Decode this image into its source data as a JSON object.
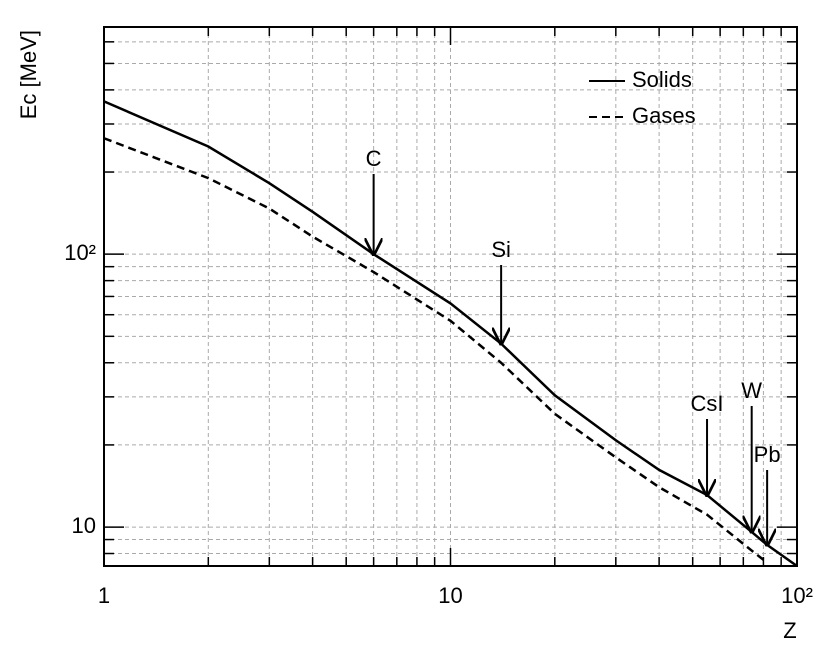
{
  "chart_data": {
    "type": "line",
    "x_label": "Z",
    "y_label": "Ec [MeV]",
    "log_x": true,
    "log_y": true,
    "grid": true,
    "legend_position": "upper right",
    "xlim": [
      1,
      100
    ],
    "ylim": [
      7.2,
      680
    ],
    "xticks": [
      1,
      10,
      {
        "value": 100,
        "label": "10²"
      }
    ],
    "xminor": [
      2,
      3,
      4,
      5,
      6,
      7,
      8,
      9,
      20,
      30,
      40,
      50,
      60,
      70,
      80,
      90
    ],
    "yticks": [
      10,
      {
        "value": 100,
        "label": "10²"
      }
    ],
    "yminor": [
      8,
      9,
      20,
      30,
      40,
      50,
      60,
      70,
      80,
      90,
      200,
      300,
      400,
      500,
      600
    ],
    "x": [
      1,
      2,
      3,
      4,
      6,
      10,
      14,
      20,
      30,
      40,
      55,
      74,
      82,
      100
    ],
    "series": [
      {
        "name": "Solids",
        "color": "#000000",
        "dashed": false,
        "values": [
          363,
          248,
          182,
          143,
          100,
          66,
          47,
          30.4,
          20.8,
          16.2,
          13.1,
          9.6,
          8.6,
          7.2
        ]
      },
      {
        "name": "Gases",
        "color": "#000000",
        "dashed": true,
        "values": [
          266,
          190,
          147,
          116,
          86,
          57,
          40,
          26,
          18,
          14,
          11.1,
          8.2,
          7.4,
          null
        ]
      }
    ],
    "annotations": [
      {
        "text": "C",
        "x": 6,
        "y": 100
      },
      {
        "text": "Si",
        "x": 14,
        "y": 47
      },
      {
        "text": "CsI",
        "x": 55,
        "y": 13.1
      },
      {
        "text": "W",
        "x": 74,
        "y": 9.6
      },
      {
        "text": "Pb",
        "x": 82,
        "y": 8.6
      }
    ]
  }
}
